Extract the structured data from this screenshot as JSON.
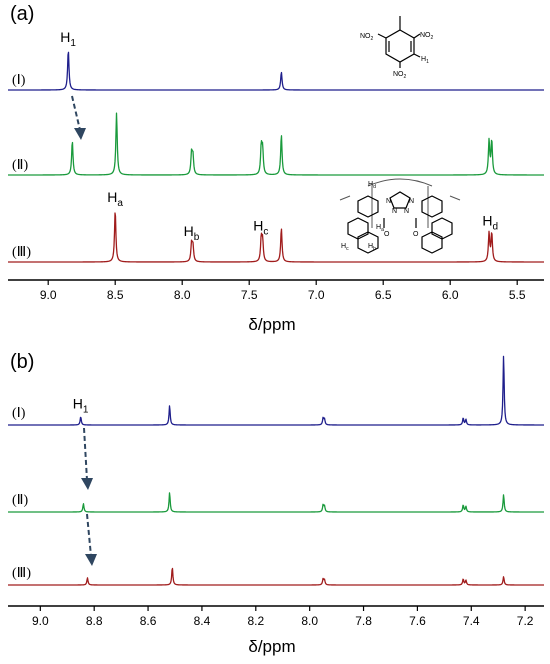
{
  "chart_data": [
    {
      "type": "line",
      "panel_label": "(a)",
      "xlabel": "δ/ppm",
      "xlim": [
        9.3,
        5.3
      ],
      "x_reversed": true,
      "xticks": [
        "9.0",
        "8.5",
        "8.0",
        "7.5",
        "7.0",
        "6.5",
        "6.0",
        "5.5"
      ],
      "series": [
        {
          "name": "(Ⅰ)",
          "color": "#1f1f8c",
          "peaks": [
            {
              "x": 8.85,
              "h": 1.0
            },
            {
              "x": 7.26,
              "h": 0.45
            }
          ]
        },
        {
          "name": "(Ⅱ)",
          "color": "#1a9a3c",
          "peaks": [
            {
              "x": 8.82,
              "h": 0.55
            },
            {
              "x": 8.49,
              "h": 1.0
            },
            {
              "x": 7.93,
              "h": 0.35
            },
            {
              "x": 7.92,
              "h": 0.3
            },
            {
              "x": 7.41,
              "h": 0.45
            },
            {
              "x": 7.4,
              "h": 0.4
            },
            {
              "x": 7.26,
              "h": 0.65
            },
            {
              "x": 5.71,
              "h": 0.55
            },
            {
              "x": 5.69,
              "h": 0.55
            }
          ]
        },
        {
          "name": "(Ⅲ)",
          "color": "#a01c1c",
          "peaks": [
            {
              "x": 8.5,
              "h": 1.0
            },
            {
              "x": 7.93,
              "h": 0.35
            },
            {
              "x": 7.92,
              "h": 0.3
            },
            {
              "x": 7.41,
              "h": 0.45
            },
            {
              "x": 7.4,
              "h": 0.4
            },
            {
              "x": 7.26,
              "h": 0.65
            },
            {
              "x": 5.71,
              "h": 0.55
            },
            {
              "x": 5.69,
              "h": 0.55
            }
          ]
        }
      ],
      "annotations": [
        {
          "text": "H",
          "sub": "1",
          "series": "(Ⅰ)",
          "x": 8.85
        },
        {
          "text": "H",
          "sub": "a",
          "series": "(Ⅲ)",
          "x": 8.5
        },
        {
          "text": "H",
          "sub": "b",
          "series": "(Ⅲ)",
          "x": 7.93
        },
        {
          "text": "H",
          "sub": "c",
          "series": "(Ⅲ)",
          "x": 7.41
        },
        {
          "text": "H",
          "sub": "d",
          "series": "(Ⅲ)",
          "x": 5.7
        }
      ],
      "structures": {
        "guest_labels": [
          "NO",
          "2",
          "NO",
          "2",
          "NO",
          "2",
          "H",
          "1"
        ],
        "host_labels": [
          "H",
          "d",
          "H",
          "a",
          "H",
          "c",
          "H",
          "b",
          "N",
          "N",
          "N",
          "N",
          "O",
          "O"
        ]
      }
    },
    {
      "type": "line",
      "panel_label": "(b)",
      "xlabel": "δ/ppm",
      "xlim": [
        9.12,
        7.13
      ],
      "x_reversed": true,
      "xticks": [
        "9.0",
        "8.8",
        "8.6",
        "8.4",
        "8.2",
        "8.0",
        "7.8",
        "7.6",
        "7.4",
        "7.2"
      ],
      "series": [
        {
          "name": "(Ⅰ)",
          "color": "#1f1f8c",
          "peaks": [
            {
              "x": 8.85,
              "h": 0.12
            },
            {
              "x": 8.52,
              "h": 0.28
            },
            {
              "x": 7.95,
              "h": 0.1
            },
            {
              "x": 7.945,
              "h": 0.08
            },
            {
              "x": 7.43,
              "h": 0.1
            },
            {
              "x": 7.42,
              "h": 0.08
            },
            {
              "x": 7.28,
              "h": 1.0
            }
          ]
        },
        {
          "name": "(Ⅱ)",
          "color": "#1a9a3c",
          "peaks": [
            {
              "x": 8.84,
              "h": 0.12
            },
            {
              "x": 8.52,
              "h": 0.28
            },
            {
              "x": 7.95,
              "h": 0.1
            },
            {
              "x": 7.945,
              "h": 0.08
            },
            {
              "x": 7.43,
              "h": 0.1
            },
            {
              "x": 7.42,
              "h": 0.08
            },
            {
              "x": 7.28,
              "h": 0.25
            }
          ]
        },
        {
          "name": "(Ⅲ)",
          "color": "#a01c1c",
          "peaks": [
            {
              "x": 8.825,
              "h": 0.12
            },
            {
              "x": 8.51,
              "h": 0.3
            },
            {
              "x": 7.95,
              "h": 0.1
            },
            {
              "x": 7.945,
              "h": 0.08
            },
            {
              "x": 7.43,
              "h": 0.1
            },
            {
              "x": 7.42,
              "h": 0.08
            },
            {
              "x": 7.28,
              "h": 0.14
            }
          ]
        }
      ],
      "annotations": [
        {
          "text": "H",
          "sub": "1",
          "series": "(Ⅰ)",
          "x": 8.85
        }
      ]
    }
  ]
}
